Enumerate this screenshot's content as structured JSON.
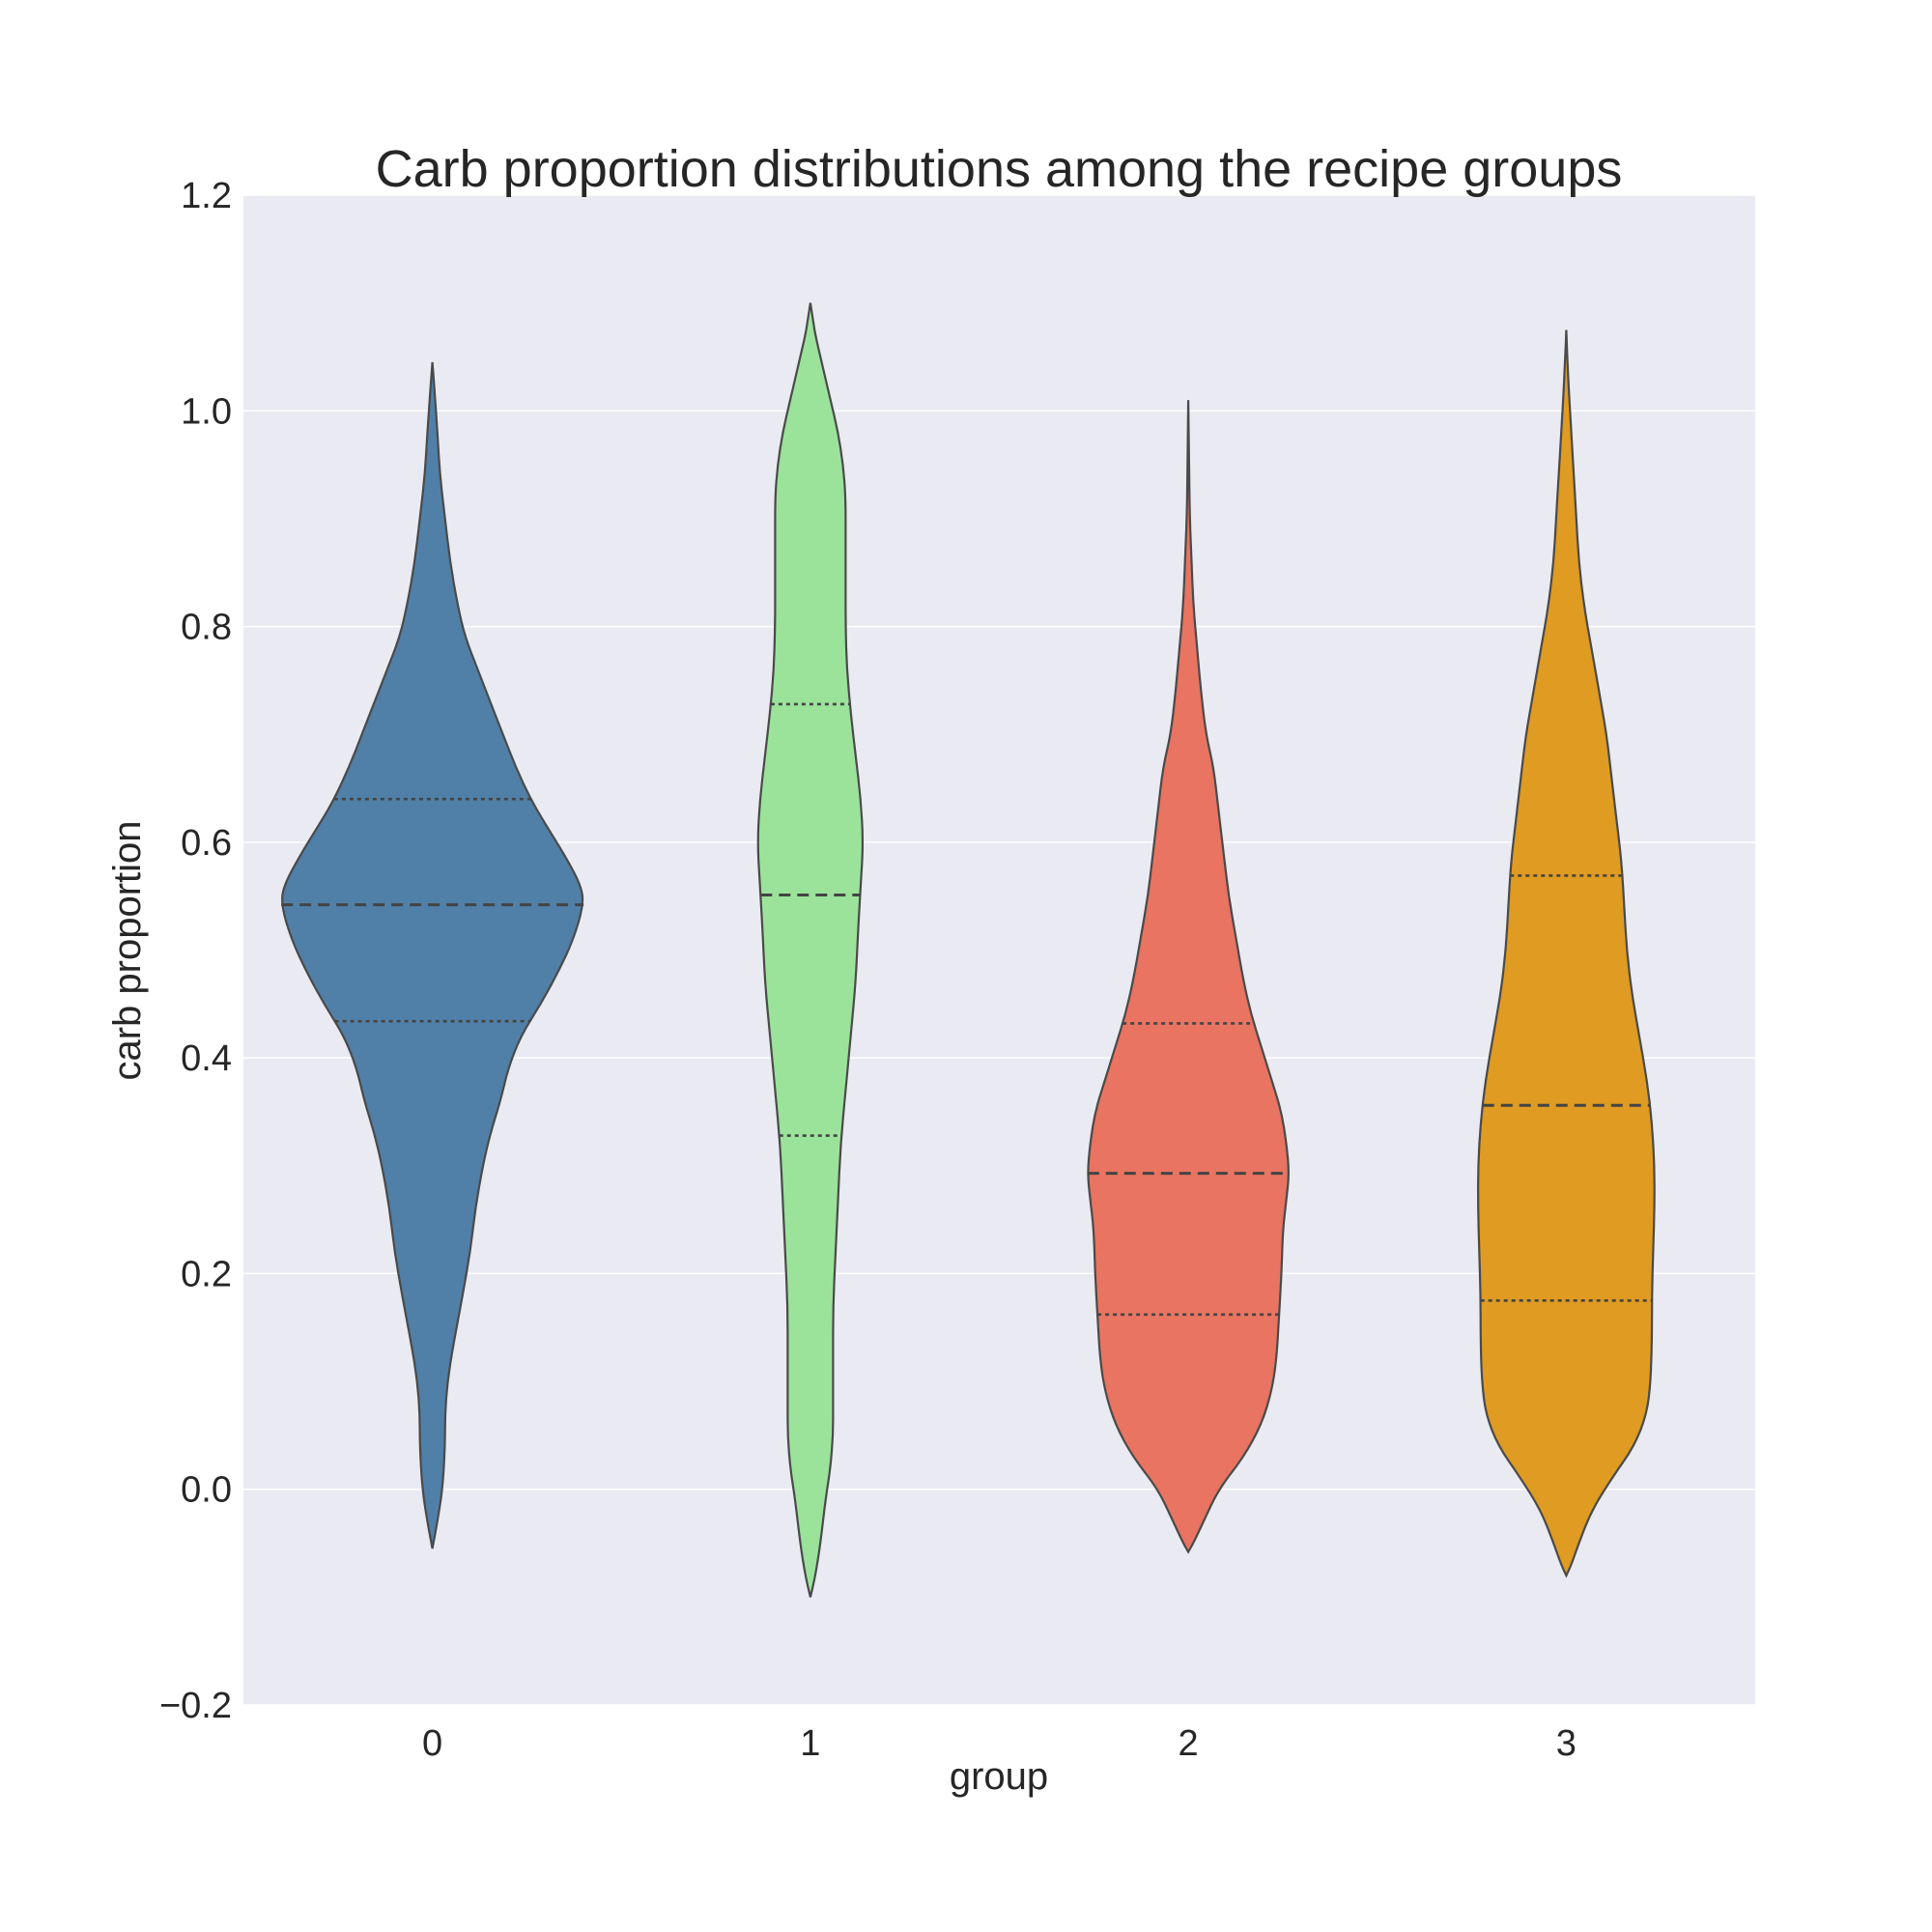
{
  "chart_data": {
    "type": "violin",
    "title": "Carb proportion distributions among the recipe groups",
    "xlabel": "group",
    "ylabel": "carb proportion",
    "ylim": [
      -0.2,
      1.2
    ],
    "yticks": [
      -0.2,
      0.0,
      0.2,
      0.4,
      0.6,
      0.8,
      1.0,
      1.2
    ],
    "ytick_labels": [
      "−0.2",
      "0.0",
      "0.2",
      "0.4",
      "0.6",
      "0.8",
      "1.0",
      "1.2"
    ],
    "categories": [
      "0",
      "1",
      "2",
      "3"
    ],
    "grid": true,
    "background": "#eaeaf2",
    "violins": [
      {
        "group": "0",
        "color": "#5080a8",
        "median": 0.542,
        "q1": 0.434,
        "q3": 0.64,
        "profile": [
          [
            -0.055,
            0.0
          ],
          [
            -0.03,
            0.02
          ],
          [
            0.0,
            0.04
          ],
          [
            0.04,
            0.05
          ],
          [
            0.07,
            0.05
          ],
          [
            0.1,
            0.06
          ],
          [
            0.13,
            0.08
          ],
          [
            0.18,
            0.12
          ],
          [
            0.22,
            0.15
          ],
          [
            0.26,
            0.17
          ],
          [
            0.3,
            0.2
          ],
          [
            0.33,
            0.23
          ],
          [
            0.36,
            0.27
          ],
          [
            0.39,
            0.3
          ],
          [
            0.42,
            0.35
          ],
          [
            0.45,
            0.43
          ],
          [
            0.48,
            0.5
          ],
          [
            0.51,
            0.56
          ],
          [
            0.542,
            0.6
          ],
          [
            0.56,
            0.59
          ],
          [
            0.59,
            0.52
          ],
          [
            0.62,
            0.44
          ],
          [
            0.64,
            0.39
          ],
          [
            0.67,
            0.33
          ],
          [
            0.7,
            0.28
          ],
          [
            0.73,
            0.23
          ],
          [
            0.76,
            0.18
          ],
          [
            0.79,
            0.13
          ],
          [
            0.82,
            0.1
          ],
          [
            0.86,
            0.07
          ],
          [
            0.9,
            0.05
          ],
          [
            0.94,
            0.03
          ],
          [
            0.98,
            0.02
          ],
          [
            1.02,
            0.008
          ],
          [
            1.045,
            0.0
          ]
        ]
      },
      {
        "group": "1",
        "color": "#9be39b",
        "median": 0.551,
        "q1": 0.328,
        "q3": 0.728,
        "profile": [
          [
            -0.1,
            0.0
          ],
          [
            -0.08,
            0.02
          ],
          [
            -0.05,
            0.04
          ],
          [
            -0.01,
            0.06
          ],
          [
            0.02,
            0.08
          ],
          [
            0.05,
            0.09
          ],
          [
            0.08,
            0.09
          ],
          [
            0.12,
            0.09
          ],
          [
            0.17,
            0.09
          ],
          [
            0.22,
            0.1
          ],
          [
            0.27,
            0.11
          ],
          [
            0.32,
            0.12
          ],
          [
            0.37,
            0.14
          ],
          [
            0.42,
            0.16
          ],
          [
            0.47,
            0.18
          ],
          [
            0.52,
            0.19
          ],
          [
            0.56,
            0.2
          ],
          [
            0.6,
            0.21
          ],
          [
            0.64,
            0.2
          ],
          [
            0.68,
            0.18
          ],
          [
            0.72,
            0.16
          ],
          [
            0.76,
            0.145
          ],
          [
            0.8,
            0.14
          ],
          [
            0.84,
            0.14
          ],
          [
            0.88,
            0.14
          ],
          [
            0.92,
            0.14
          ],
          [
            0.95,
            0.13
          ],
          [
            0.98,
            0.11
          ],
          [
            1.01,
            0.08
          ],
          [
            1.04,
            0.05
          ],
          [
            1.07,
            0.02
          ],
          [
            1.085,
            0.01
          ],
          [
            1.1,
            0.0
          ]
        ]
      },
      {
        "group": "2",
        "color": "#e87461",
        "median": 0.293,
        "q1": 0.162,
        "q3": 0.432,
        "profile": [
          [
            -0.058,
            0.0
          ],
          [
            -0.05,
            0.02
          ],
          [
            -0.03,
            0.06
          ],
          [
            0.0,
            0.12
          ],
          [
            0.03,
            0.22
          ],
          [
            0.06,
            0.29
          ],
          [
            0.09,
            0.33
          ],
          [
            0.12,
            0.35
          ],
          [
            0.16,
            0.36
          ],
          [
            0.2,
            0.37
          ],
          [
            0.24,
            0.375
          ],
          [
            0.27,
            0.39
          ],
          [
            0.293,
            0.4
          ],
          [
            0.32,
            0.39
          ],
          [
            0.35,
            0.37
          ],
          [
            0.38,
            0.33
          ],
          [
            0.41,
            0.29
          ],
          [
            0.44,
            0.25
          ],
          [
            0.47,
            0.22
          ],
          [
            0.51,
            0.19
          ],
          [
            0.55,
            0.16
          ],
          [
            0.59,
            0.14
          ],
          [
            0.63,
            0.12
          ],
          [
            0.67,
            0.1
          ],
          [
            0.7,
            0.07
          ],
          [
            0.74,
            0.05
          ],
          [
            0.78,
            0.035
          ],
          [
            0.82,
            0.02
          ],
          [
            0.86,
            0.013
          ],
          [
            0.9,
            0.006
          ],
          [
            0.95,
            0.003
          ],
          [
            1.01,
            0.0
          ]
        ]
      },
      {
        "group": "3",
        "color": "#df9b22",
        "median": 0.356,
        "q1": 0.175,
        "q3": 0.569,
        "profile": [
          [
            -0.08,
            0.0
          ],
          [
            -0.07,
            0.02
          ],
          [
            -0.05,
            0.05
          ],
          [
            -0.02,
            0.1
          ],
          [
            0.01,
            0.18
          ],
          [
            0.04,
            0.27
          ],
          [
            0.07,
            0.32
          ],
          [
            0.1,
            0.335
          ],
          [
            0.14,
            0.34
          ],
          [
            0.18,
            0.34
          ],
          [
            0.22,
            0.345
          ],
          [
            0.26,
            0.35
          ],
          [
            0.3,
            0.35
          ],
          [
            0.34,
            0.34
          ],
          [
            0.38,
            0.32
          ],
          [
            0.42,
            0.29
          ],
          [
            0.46,
            0.26
          ],
          [
            0.5,
            0.24
          ],
          [
            0.54,
            0.23
          ],
          [
            0.58,
            0.22
          ],
          [
            0.62,
            0.2
          ],
          [
            0.66,
            0.18
          ],
          [
            0.7,
            0.16
          ],
          [
            0.74,
            0.13
          ],
          [
            0.78,
            0.1
          ],
          [
            0.82,
            0.07
          ],
          [
            0.86,
            0.05
          ],
          [
            0.9,
            0.04
          ],
          [
            0.94,
            0.03
          ],
          [
            0.98,
            0.02
          ],
          [
            1.02,
            0.01
          ],
          [
            1.05,
            0.004
          ],
          [
            1.075,
            0.0
          ]
        ]
      }
    ]
  }
}
